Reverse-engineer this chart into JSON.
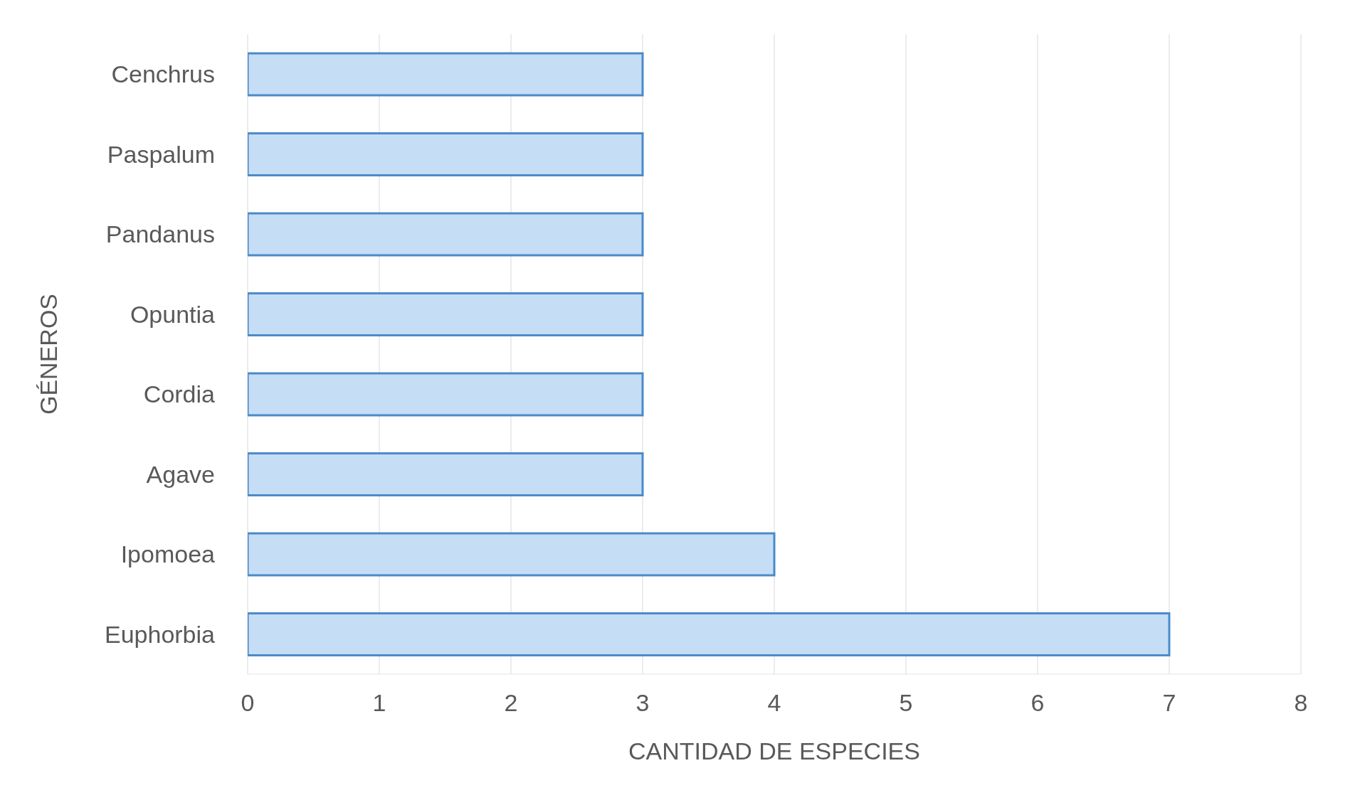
{
  "chart_data": {
    "type": "bar",
    "orientation": "horizontal",
    "xlabel": "CANTIDAD DE ESPECIES",
    "ylabel": "GÉNEROS",
    "categories": [
      "Cenchrus",
      "Paspalum",
      "Pandanus",
      "Opuntia",
      "Cordia",
      "Agave",
      "Ipomoea",
      "Euphorbia"
    ],
    "values": [
      3,
      3,
      3,
      3,
      3,
      3,
      4,
      7
    ],
    "color": "#c6ddf6",
    "xlim": [
      0,
      8
    ],
    "xticks": [
      0,
      1,
      2,
      3,
      4,
      5,
      6,
      7,
      8
    ],
    "grid": "x"
  }
}
